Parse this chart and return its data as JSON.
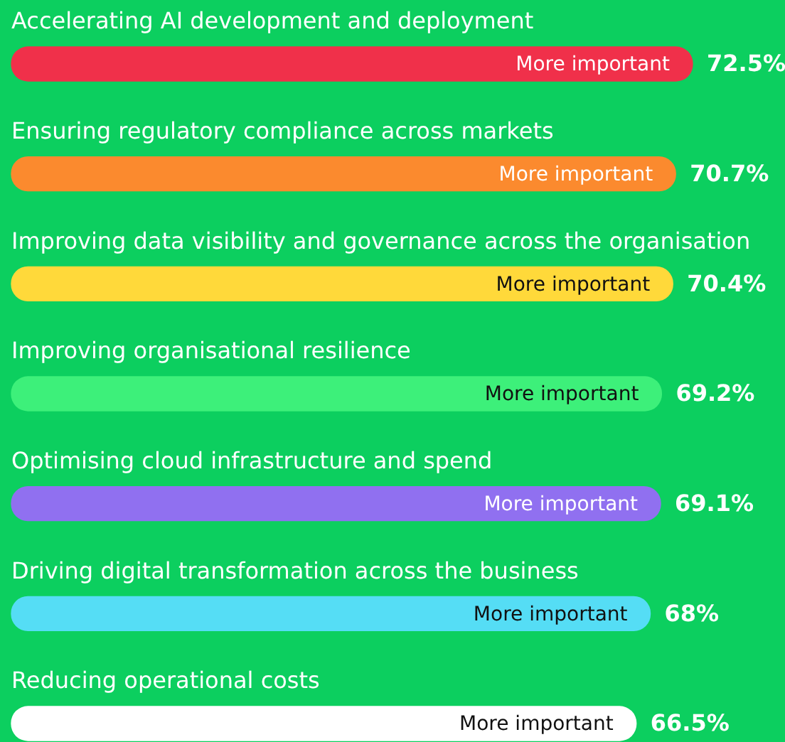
{
  "chart_data": {
    "type": "bar",
    "orientation": "horizontal",
    "tick_labels": false,
    "legend": false,
    "categories": [
      "Accelerating AI development and deployment",
      "Ensuring regulatory compliance across markets",
      "Improving data visibility and governance across the organisation",
      "Improving organisational resilience",
      "Optimising cloud infrastructure and spend",
      "Driving digital transformation across the business",
      "Reducing operational costs"
    ],
    "series": [
      {
        "name": "More important",
        "colors": [
          "#f0304a",
          "#fb8a2e",
          "#ffd93a",
          "#3df07a",
          "#9070f0",
          "#55ddf5",
          "#ffffff"
        ],
        "values": [
          72.5,
          70.7,
          70.4,
          69.2,
          69.1,
          68,
          66.5
        ],
        "value_labels": [
          "72.5%",
          "70.7%",
          "70.4%",
          "69.2%",
          "69.1%",
          "68%",
          "66.5%"
        ]
      }
    ]
  }
}
